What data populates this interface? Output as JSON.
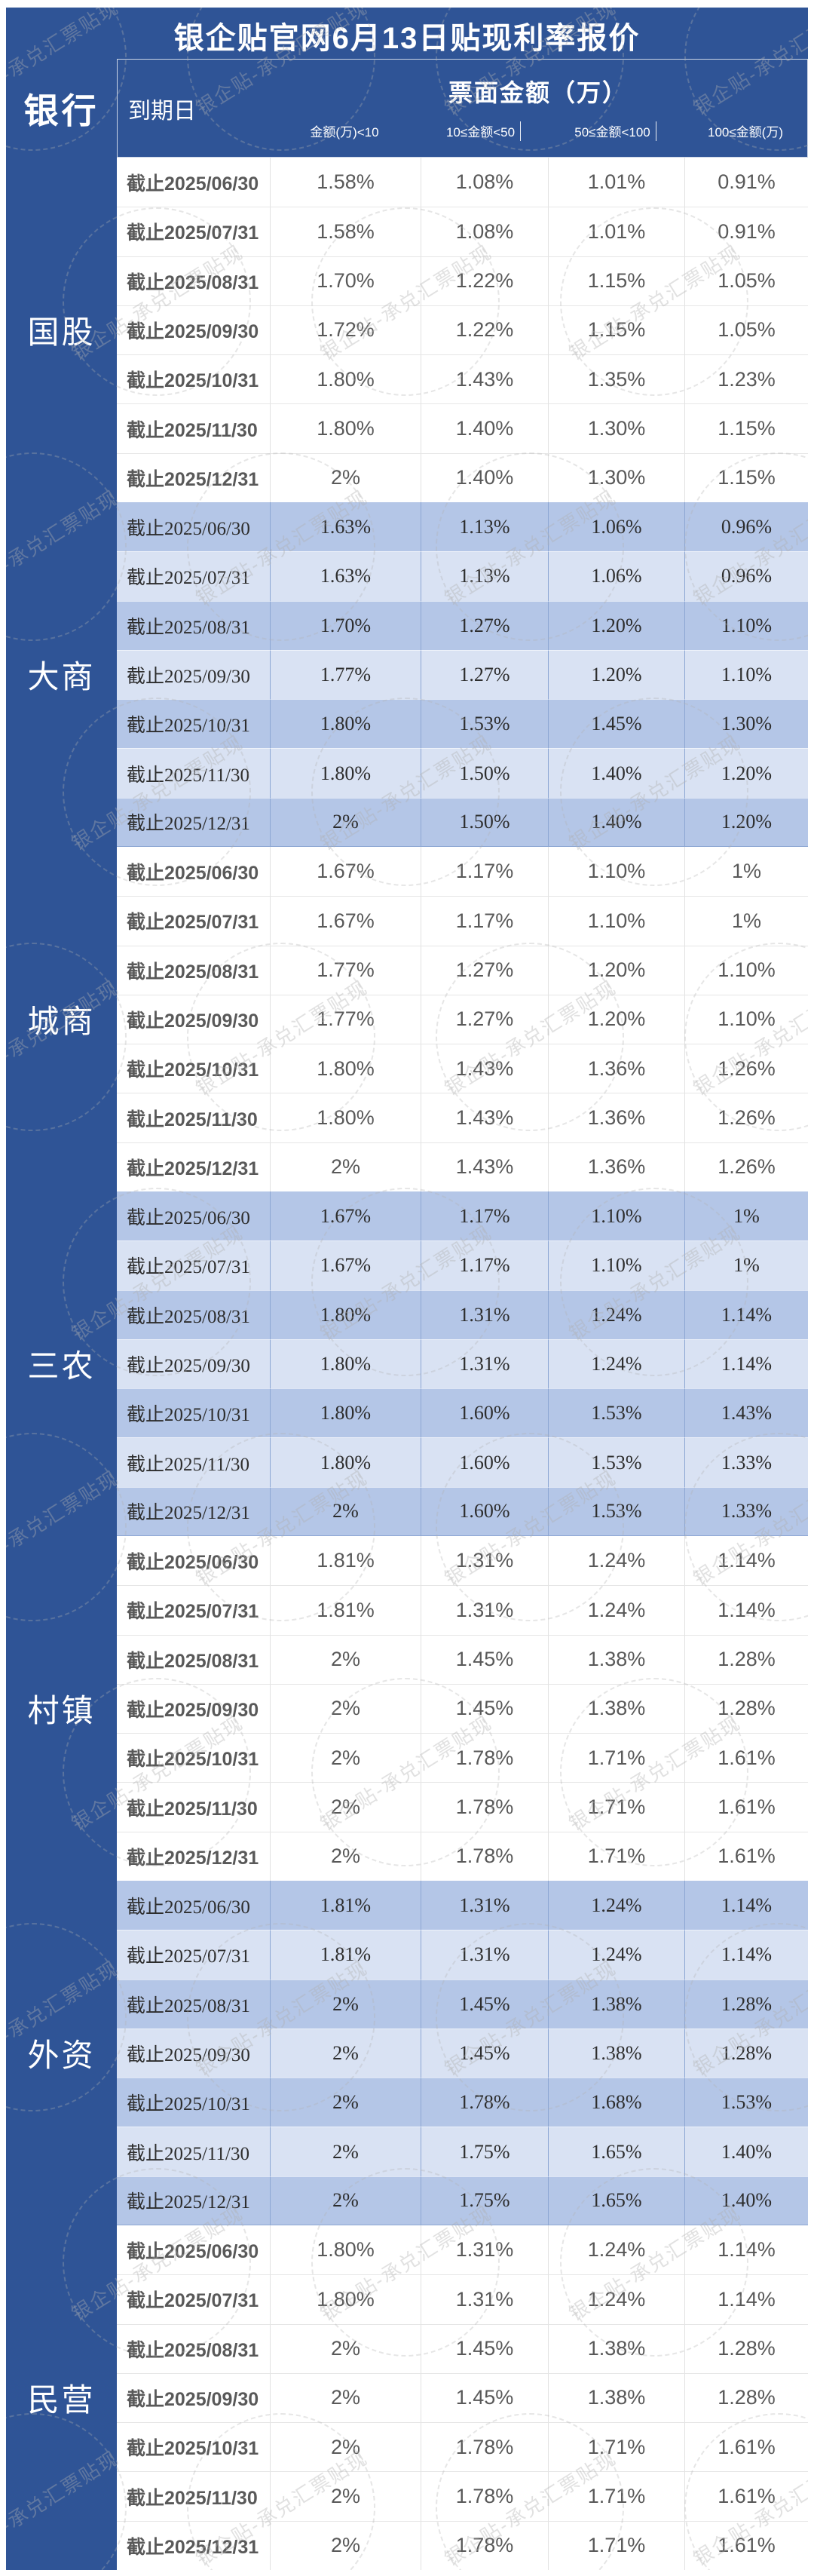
{
  "title": "银企贴官网6月13日贴现利率报价",
  "watermark": {
    "text": "银企贴-承兑汇票贴现"
  },
  "colors": {
    "header_blue": "#2F5496",
    "row_blue_dark": "#B4C6E7",
    "row_blue_light": "#D9E2F3"
  },
  "table": {
    "bank_column_header": "银行",
    "maturity_header": "到期日",
    "face_amount_header": "票面金额（万）",
    "amount_ranges": [
      "金额(万)<10",
      "10≤金额<50",
      "50≤金额<100",
      "100≤金额(万)"
    ],
    "maturity_dates": [
      "截止2025/06/30",
      "截止2025/07/31",
      "截止2025/08/31",
      "截止2025/09/30",
      "截止2025/10/31",
      "截止2025/11/30",
      "截止2025/12/31"
    ],
    "sections": [
      {
        "bank_type": "国股",
        "style": "white",
        "rates": [
          [
            "1.58%",
            "1.08%",
            "1.01%",
            "0.91%"
          ],
          [
            "1.58%",
            "1.08%",
            "1.01%",
            "0.91%"
          ],
          [
            "1.70%",
            "1.22%",
            "1.15%",
            "1.05%"
          ],
          [
            "1.72%",
            "1.22%",
            "1.15%",
            "1.05%"
          ],
          [
            "1.80%",
            "1.43%",
            "1.35%",
            "1.23%"
          ],
          [
            "1.80%",
            "1.40%",
            "1.30%",
            "1.15%"
          ],
          [
            "2%",
            "1.40%",
            "1.30%",
            "1.15%"
          ]
        ]
      },
      {
        "bank_type": "大商",
        "style": "blue",
        "rates": [
          [
            "1.63%",
            "1.13%",
            "1.06%",
            "0.96%"
          ],
          [
            "1.63%",
            "1.13%",
            "1.06%",
            "0.96%"
          ],
          [
            "1.70%",
            "1.27%",
            "1.20%",
            "1.10%"
          ],
          [
            "1.77%",
            "1.27%",
            "1.20%",
            "1.10%"
          ],
          [
            "1.80%",
            "1.53%",
            "1.45%",
            "1.30%"
          ],
          [
            "1.80%",
            "1.50%",
            "1.40%",
            "1.20%"
          ],
          [
            "2%",
            "1.50%",
            "1.40%",
            "1.20%"
          ]
        ]
      },
      {
        "bank_type": "城商",
        "style": "white",
        "rates": [
          [
            "1.67%",
            "1.17%",
            "1.10%",
            "1%"
          ],
          [
            "1.67%",
            "1.17%",
            "1.10%",
            "1%"
          ],
          [
            "1.77%",
            "1.27%",
            "1.20%",
            "1.10%"
          ],
          [
            "1.77%",
            "1.27%",
            "1.20%",
            "1.10%"
          ],
          [
            "1.80%",
            "1.43%",
            "1.36%",
            "1.26%"
          ],
          [
            "1.80%",
            "1.43%",
            "1.36%",
            "1.26%"
          ],
          [
            "2%",
            "1.43%",
            "1.36%",
            "1.26%"
          ]
        ]
      },
      {
        "bank_type": "三农",
        "style": "blue",
        "rates": [
          [
            "1.67%",
            "1.17%",
            "1.10%",
            "1%"
          ],
          [
            "1.67%",
            "1.17%",
            "1.10%",
            "1%"
          ],
          [
            "1.80%",
            "1.31%",
            "1.24%",
            "1.14%"
          ],
          [
            "1.80%",
            "1.31%",
            "1.24%",
            "1.14%"
          ],
          [
            "1.80%",
            "1.60%",
            "1.53%",
            "1.43%"
          ],
          [
            "1.80%",
            "1.60%",
            "1.53%",
            "1.33%"
          ],
          [
            "2%",
            "1.60%",
            "1.53%",
            "1.33%"
          ]
        ]
      },
      {
        "bank_type": "村镇",
        "style": "white",
        "rates": [
          [
            "1.81%",
            "1.31%",
            "1.24%",
            "1.14%"
          ],
          [
            "1.81%",
            "1.31%",
            "1.24%",
            "1.14%"
          ],
          [
            "2%",
            "1.45%",
            "1.38%",
            "1.28%"
          ],
          [
            "2%",
            "1.45%",
            "1.38%",
            "1.28%"
          ],
          [
            "2%",
            "1.78%",
            "1.71%",
            "1.61%"
          ],
          [
            "2%",
            "1.78%",
            "1.71%",
            "1.61%"
          ],
          [
            "2%",
            "1.78%",
            "1.71%",
            "1.61%"
          ]
        ]
      },
      {
        "bank_type": "外资",
        "style": "blue",
        "rates": [
          [
            "1.81%",
            "1.31%",
            "1.24%",
            "1.14%"
          ],
          [
            "1.81%",
            "1.31%",
            "1.24%",
            "1.14%"
          ],
          [
            "2%",
            "1.45%",
            "1.38%",
            "1.28%"
          ],
          [
            "2%",
            "1.45%",
            "1.38%",
            "1.28%"
          ],
          [
            "2%",
            "1.78%",
            "1.68%",
            "1.53%"
          ],
          [
            "2%",
            "1.75%",
            "1.65%",
            "1.40%"
          ],
          [
            "2%",
            "1.75%",
            "1.65%",
            "1.40%"
          ]
        ]
      },
      {
        "bank_type": "民营",
        "style": "white",
        "rates": [
          [
            "1.80%",
            "1.31%",
            "1.24%",
            "1.14%"
          ],
          [
            "1.80%",
            "1.31%",
            "1.24%",
            "1.14%"
          ],
          [
            "2%",
            "1.45%",
            "1.38%",
            "1.28%"
          ],
          [
            "2%",
            "1.45%",
            "1.38%",
            "1.28%"
          ],
          [
            "2%",
            "1.78%",
            "1.71%",
            "1.61%"
          ],
          [
            "2%",
            "1.78%",
            "1.71%",
            "1.61%"
          ],
          [
            "2%",
            "1.78%",
            "1.71%",
            "1.61%"
          ]
        ]
      }
    ]
  }
}
